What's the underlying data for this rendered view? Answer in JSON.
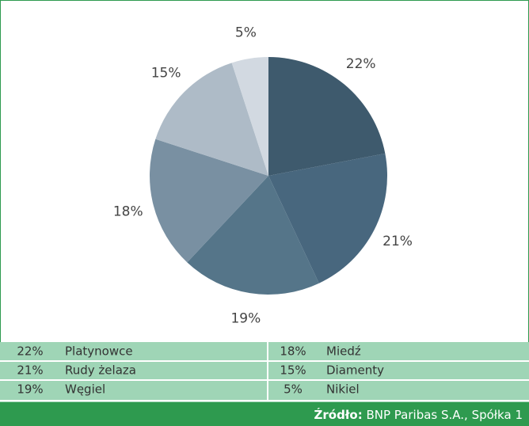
{
  "chart_data": {
    "type": "pie",
    "categories": [
      "Platynowce",
      "Rudy żelaza",
      "Węgiel",
      "Miedź",
      "Diamenty",
      "Nikiel"
    ],
    "values": [
      22,
      21,
      19,
      18,
      15,
      5
    ],
    "value_labels": [
      "22%",
      "21%",
      "19%",
      "18%",
      "15%",
      "5%"
    ],
    "colors": [
      "#3e5a6d",
      "#48677e",
      "#557589",
      "#7990a2",
      "#aebbc7",
      "#d2d9e1"
    ],
    "source_label": "Źródło:",
    "source": "BNP Paribas S.A., Spółka 1"
  }
}
